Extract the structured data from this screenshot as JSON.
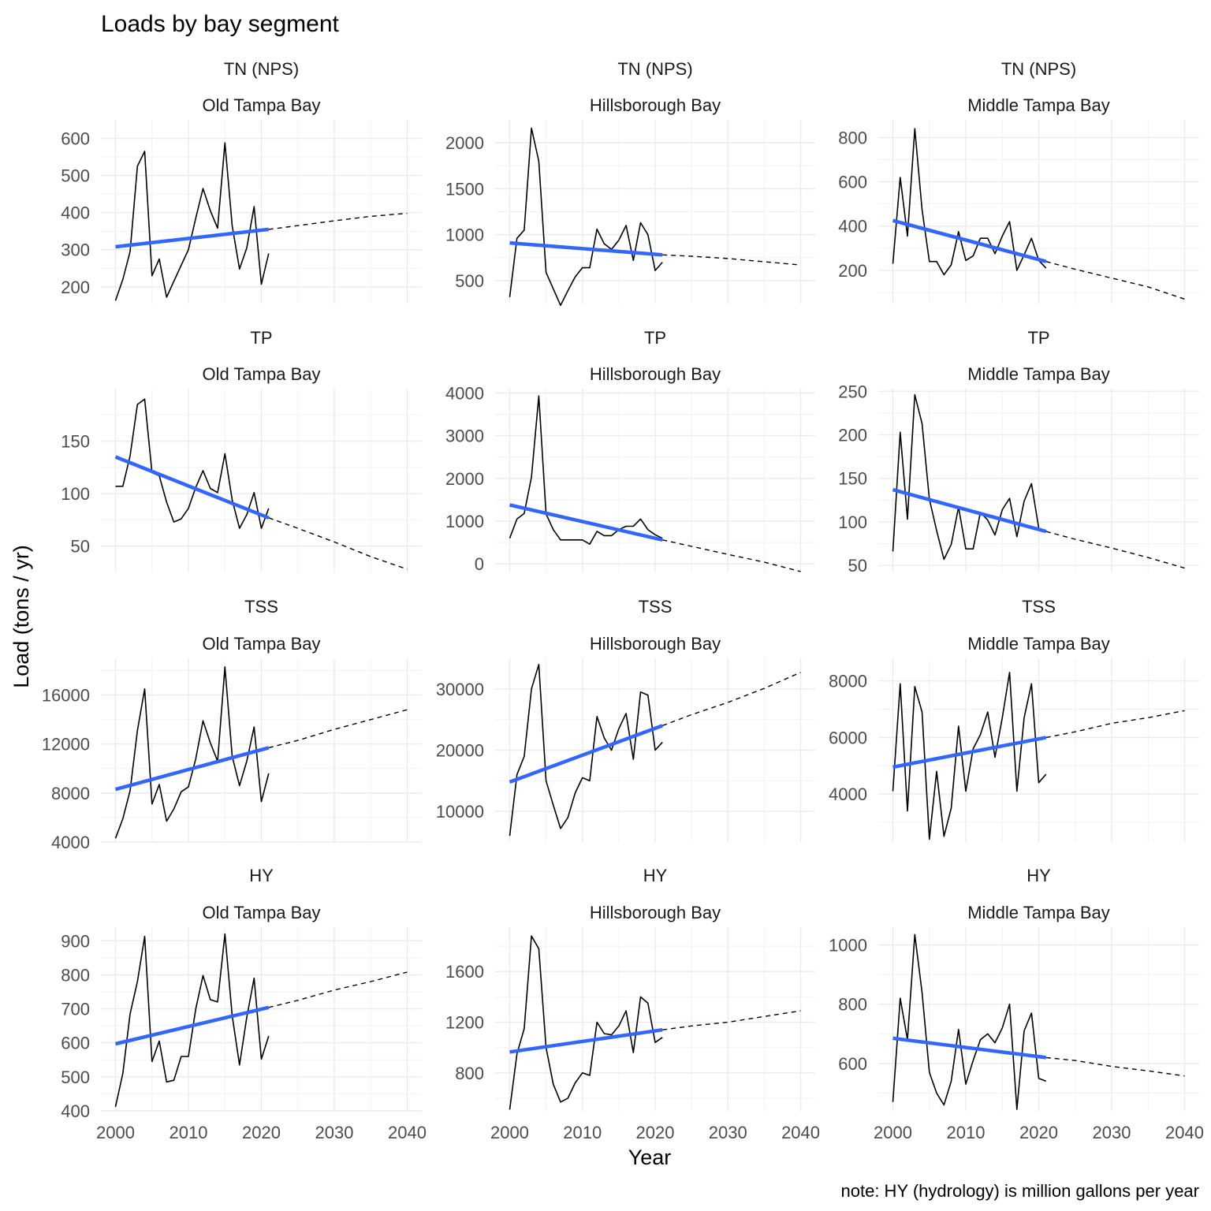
{
  "title": "Loads by bay segment",
  "xlabel": "Year",
  "ylabel": "Load (tons / yr)",
  "note": "note: HY (hydrology) is million gallons per year",
  "colors": {
    "observed": "#000000",
    "trend": "#3366FF",
    "grid": "#EBEBEB",
    "text": "#4D4D4D"
  },
  "chart_data": [
    {
      "type": "line",
      "row": 0,
      "col": 0,
      "param": "TN (NPS)",
      "segment": "Old Tampa Bay",
      "ylim": [
        155,
        650
      ],
      "yticks": [
        200,
        300,
        400,
        500,
        600
      ],
      "x": [
        2000,
        2001,
        2002,
        2003,
        2004,
        2005,
        2006,
        2007,
        2008,
        2009,
        2010,
        2011,
        2012,
        2013,
        2014,
        2015,
        2016,
        2017,
        2018,
        2019,
        2020,
        2021
      ],
      "values": [
        163,
        220,
        295,
        525,
        565,
        230,
        275,
        172,
        215,
        258,
        300,
        385,
        465,
        405,
        358,
        588,
        365,
        248,
        305,
        416,
        207,
        290
      ],
      "trend": [
        [
          2000,
          308
        ],
        [
          2021,
          355
        ]
      ],
      "proj": [
        [
          2021,
          355
        ],
        [
          2025,
          365
        ],
        [
          2030,
          378
        ],
        [
          2035,
          390
        ],
        [
          2040,
          398
        ]
      ]
    },
    {
      "type": "line",
      "row": 0,
      "col": 1,
      "param": "TN (NPS)",
      "segment": "Hillsborough Bay",
      "ylim": [
        250,
        2250
      ],
      "yticks": [
        500,
        1000,
        1500,
        2000
      ],
      "x": [
        2000,
        2001,
        2002,
        2003,
        2004,
        2005,
        2006,
        2007,
        2008,
        2009,
        2010,
        2011,
        2012,
        2013,
        2014,
        2015,
        2016,
        2017,
        2018,
        2019,
        2020,
        2021
      ],
      "values": [
        320,
        960,
        1050,
        2160,
        1800,
        590,
        410,
        230,
        390,
        540,
        640,
        640,
        1060,
        900,
        840,
        940,
        1100,
        720,
        1130,
        1000,
        610,
        700
      ],
      "trend": [
        [
          2000,
          910
        ],
        [
          2021,
          780
        ]
      ],
      "proj": [
        [
          2021,
          780
        ],
        [
          2025,
          765
        ],
        [
          2030,
          740
        ],
        [
          2035,
          705
        ],
        [
          2040,
          670
        ]
      ]
    },
    {
      "type": "line",
      "row": 0,
      "col": 2,
      "param": "TN (NPS)",
      "segment": "Middle Tampa Bay",
      "ylim": [
        50,
        880
      ],
      "yticks": [
        200,
        400,
        600,
        800
      ],
      "x": [
        2000,
        2001,
        2002,
        2003,
        2004,
        2005,
        2006,
        2007,
        2008,
        2009,
        2010,
        2011,
        2012,
        2013,
        2014,
        2015,
        2016,
        2017,
        2018,
        2019,
        2020,
        2021
      ],
      "values": [
        230,
        620,
        355,
        840,
        475,
        240,
        240,
        180,
        225,
        375,
        245,
        265,
        345,
        345,
        275,
        355,
        420,
        200,
        270,
        345,
        245,
        210
      ],
      "trend": [
        [
          2000,
          425
        ],
        [
          2021,
          240
        ]
      ],
      "proj": [
        [
          2021,
          240
        ],
        [
          2025,
          205
        ],
        [
          2030,
          165
        ],
        [
          2035,
          125
        ],
        [
          2040,
          70
        ]
      ]
    },
    {
      "type": "line",
      "row": 1,
      "col": 0,
      "param": "TP",
      "segment": "Old Tampa Bay",
      "ylim": [
        25,
        200
      ],
      "yticks": [
        50,
        100,
        150
      ],
      "x": [
        2000,
        2001,
        2002,
        2003,
        2004,
        2005,
        2006,
        2007,
        2008,
        2009,
        2010,
        2011,
        2012,
        2013,
        2014,
        2015,
        2016,
        2017,
        2018,
        2019,
        2020,
        2021
      ],
      "values": [
        107,
        107,
        136,
        185,
        190,
        120,
        117,
        92,
        73,
        76,
        86,
        106,
        122,
        105,
        101,
        138,
        94,
        67,
        80,
        101,
        67,
        86
      ],
      "trend": [
        [
          2000,
          135
        ],
        [
          2021,
          77
        ]
      ],
      "proj": [
        [
          2021,
          77
        ],
        [
          2025,
          67
        ],
        [
          2030,
          54
        ],
        [
          2035,
          40
        ],
        [
          2040,
          28
        ]
      ]
    },
    {
      "type": "line",
      "row": 1,
      "col": 1,
      "param": "TP",
      "segment": "Hillsborough Bay",
      "ylim": [
        -200,
        4100
      ],
      "yticks": [
        0,
        1000,
        2000,
        3000,
        4000
      ],
      "x": [
        2000,
        2001,
        2002,
        2003,
        2004,
        2005,
        2006,
        2007,
        2008,
        2009,
        2010,
        2011,
        2012,
        2013,
        2014,
        2015,
        2016,
        2017,
        2018,
        2019,
        2020,
        2021
      ],
      "values": [
        600,
        1050,
        1180,
        2030,
        3930,
        1170,
        800,
        560,
        560,
        560,
        560,
        460,
        760,
        660,
        660,
        800,
        880,
        880,
        1050,
        800,
        680,
        600
      ],
      "trend": [
        [
          2000,
          1380
        ],
        [
          2021,
          560
        ]
      ],
      "proj": [
        [
          2021,
          560
        ],
        [
          2025,
          410
        ],
        [
          2030,
          220
        ],
        [
          2035,
          40
        ],
        [
          2040,
          -180
        ]
      ]
    },
    {
      "type": "line",
      "row": 1,
      "col": 2,
      "param": "TP",
      "segment": "Middle Tampa Bay",
      "ylim": [
        42,
        253
      ],
      "yticks": [
        50,
        100,
        150,
        200,
        250
      ],
      "x": [
        2000,
        2001,
        2002,
        2003,
        2004,
        2005,
        2006,
        2007,
        2008,
        2009,
        2010,
        2011,
        2012,
        2013,
        2014,
        2015,
        2016,
        2017,
        2018,
        2019,
        2020,
        2021
      ],
      "values": [
        66,
        203,
        103,
        246,
        213,
        126,
        90,
        57,
        74,
        117,
        69,
        69,
        111,
        102,
        85,
        114,
        127,
        83,
        124,
        144,
        93,
        89
      ],
      "trend": [
        [
          2000,
          137
        ],
        [
          2021,
          89
        ]
      ],
      "proj": [
        [
          2021,
          89
        ],
        [
          2025,
          80
        ],
        [
          2030,
          70
        ],
        [
          2035,
          59
        ],
        [
          2040,
          47
        ]
      ]
    },
    {
      "type": "line",
      "row": 2,
      "col": 0,
      "param": "TSS",
      "segment": "Old Tampa Bay",
      "ylim": [
        4000,
        19000
      ],
      "yticks": [
        4000,
        8000,
        12000,
        16000
      ],
      "x": [
        2000,
        2001,
        2002,
        2003,
        2004,
        2005,
        2006,
        2007,
        2008,
        2009,
        2010,
        2011,
        2012,
        2013,
        2014,
        2015,
        2016,
        2017,
        2018,
        2019,
        2020,
        2021
      ],
      "values": [
        4300,
        5900,
        8200,
        13100,
        16500,
        7100,
        8700,
        5700,
        6700,
        8100,
        8500,
        10800,
        13900,
        12100,
        10600,
        18300,
        11000,
        8600,
        10600,
        13400,
        7300,
        9600
      ],
      "trend": [
        [
          2000,
          8300
        ],
        [
          2021,
          11700
        ]
      ],
      "proj": [
        [
          2021,
          11700
        ],
        [
          2025,
          12300
        ],
        [
          2030,
          13200
        ],
        [
          2035,
          14000
        ],
        [
          2040,
          14800
        ]
      ]
    },
    {
      "type": "line",
      "row": 2,
      "col": 1,
      "param": "TSS",
      "segment": "Hillsborough Bay",
      "ylim": [
        5000,
        35000
      ],
      "yticks": [
        10000,
        20000,
        30000
      ],
      "x": [
        2000,
        2001,
        2002,
        2003,
        2004,
        2005,
        2006,
        2007,
        2008,
        2009,
        2010,
        2011,
        2012,
        2013,
        2014,
        2015,
        2016,
        2017,
        2018,
        2019,
        2020,
        2021
      ],
      "values": [
        6000,
        16000,
        19000,
        30000,
        34000,
        15000,
        11000,
        7200,
        9000,
        13000,
        15500,
        15000,
        25500,
        22000,
        20000,
        23500,
        26000,
        18500,
        29500,
        29000,
        20000,
        21300
      ],
      "trend": [
        [
          2000,
          14800
        ],
        [
          2021,
          24000
        ]
      ],
      "proj": [
        [
          2021,
          24000
        ],
        [
          2025,
          25800
        ],
        [
          2030,
          27800
        ],
        [
          2035,
          30100
        ],
        [
          2040,
          32700
        ]
      ]
    },
    {
      "type": "line",
      "row": 2,
      "col": 2,
      "param": "TSS",
      "segment": "Middle Tampa Bay",
      "ylim": [
        2300,
        8800
      ],
      "yticks": [
        4000,
        6000,
        8000
      ],
      "x": [
        2000,
        2001,
        2002,
        2003,
        2004,
        2005,
        2006,
        2007,
        2008,
        2009,
        2010,
        2011,
        2012,
        2013,
        2014,
        2015,
        2016,
        2017,
        2018,
        2019,
        2020,
        2021
      ],
      "values": [
        4100,
        7900,
        3400,
        7800,
        6900,
        2400,
        4800,
        2500,
        3500,
        6400,
        4100,
        5600,
        6100,
        6900,
        5300,
        6700,
        8300,
        4100,
        6700,
        7900,
        4400,
        4700
      ],
      "trend": [
        [
          2000,
          4950
        ],
        [
          2021,
          6000
        ]
      ],
      "proj": [
        [
          2021,
          6000
        ],
        [
          2025,
          6200
        ],
        [
          2030,
          6500
        ],
        [
          2035,
          6700
        ],
        [
          2040,
          6950
        ]
      ]
    },
    {
      "type": "line",
      "row": 3,
      "col": 0,
      "param": "HY",
      "segment": "Old Tampa Bay",
      "ylim": [
        400,
        940
      ],
      "yticks": [
        400,
        500,
        600,
        700,
        800,
        900
      ],
      "x": [
        2000,
        2001,
        2002,
        2003,
        2004,
        2005,
        2006,
        2007,
        2008,
        2009,
        2010,
        2011,
        2012,
        2013,
        2014,
        2015,
        2016,
        2017,
        2018,
        2019,
        2020,
        2021
      ],
      "values": [
        412,
        510,
        685,
        780,
        913,
        545,
        605,
        485,
        490,
        560,
        560,
        700,
        798,
        727,
        720,
        920,
        680,
        535,
        675,
        790,
        552,
        620
      ],
      "trend": [
        [
          2000,
          597
        ],
        [
          2021,
          704
        ]
      ],
      "proj": [
        [
          2021,
          704
        ],
        [
          2025,
          725
        ],
        [
          2030,
          755
        ],
        [
          2035,
          780
        ],
        [
          2040,
          808
        ]
      ]
    },
    {
      "type": "line",
      "row": 3,
      "col": 1,
      "param": "HY",
      "segment": "Hillsborough Bay",
      "ylim": [
        500,
        1950
      ],
      "yticks": [
        800,
        1200,
        1600
      ],
      "x": [
        2000,
        2001,
        2002,
        2003,
        2004,
        2005,
        2006,
        2007,
        2008,
        2009,
        2010,
        2011,
        2012,
        2013,
        2014,
        2015,
        2016,
        2017,
        2018,
        2019,
        2020,
        2021
      ],
      "values": [
        510,
        950,
        1150,
        1880,
        1780,
        1000,
        710,
        570,
        600,
        720,
        800,
        780,
        1200,
        1110,
        1100,
        1170,
        1290,
        960,
        1400,
        1350,
        1040,
        1080
      ],
      "trend": [
        [
          2000,
          965
        ],
        [
          2021,
          1140
        ]
      ],
      "proj": [
        [
          2021,
          1140
        ],
        [
          2025,
          1170
        ],
        [
          2030,
          1200
        ],
        [
          2035,
          1245
        ],
        [
          2040,
          1290
        ]
      ]
    },
    {
      "type": "line",
      "row": 3,
      "col": 2,
      "param": "HY",
      "segment": "Middle Tampa Bay",
      "ylim": [
        440,
        1060
      ],
      "yticks": [
        600,
        800,
        1000
      ],
      "x": [
        2000,
        2001,
        2002,
        2003,
        2004,
        2005,
        2006,
        2007,
        2008,
        2009,
        2010,
        2011,
        2012,
        2013,
        2014,
        2015,
        2016,
        2017,
        2018,
        2019,
        2020,
        2021
      ],
      "values": [
        470,
        820,
        680,
        1035,
        840,
        570,
        500,
        460,
        540,
        715,
        530,
        610,
        680,
        700,
        670,
        720,
        800,
        445,
        710,
        770,
        550,
        540
      ],
      "trend": [
        [
          2000,
          685
        ],
        [
          2021,
          620
        ]
      ],
      "proj": [
        [
          2021,
          620
        ],
        [
          2025,
          610
        ],
        [
          2030,
          590
        ],
        [
          2035,
          575
        ],
        [
          2040,
          558
        ]
      ]
    }
  ]
}
